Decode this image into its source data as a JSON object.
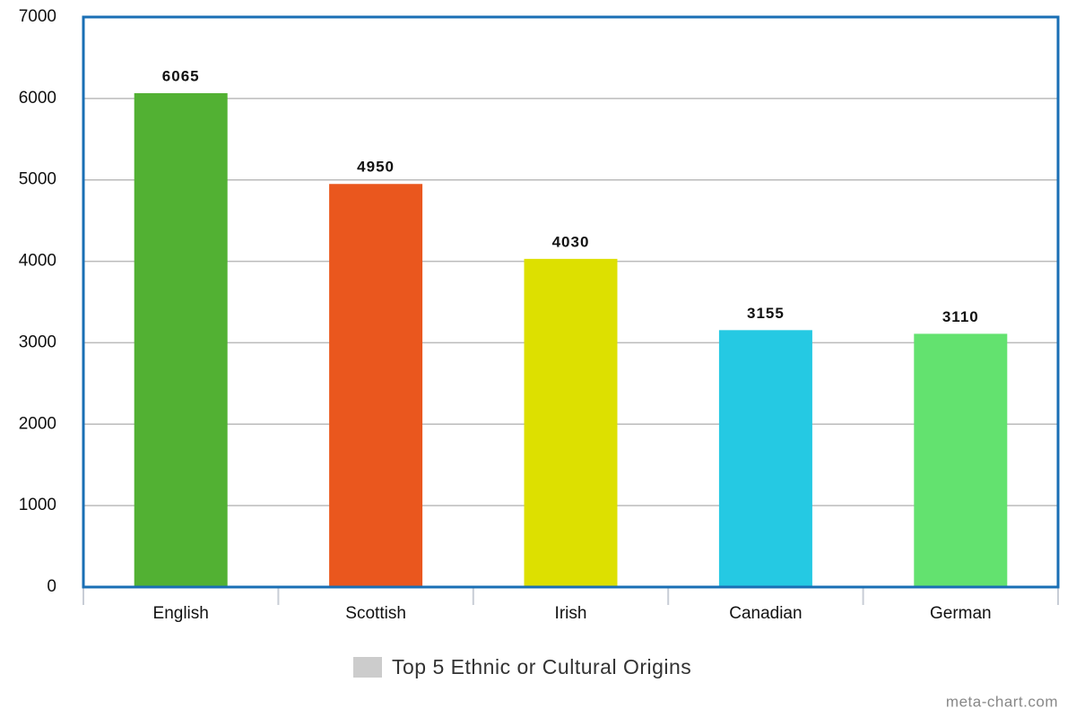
{
  "chart_data": {
    "type": "bar",
    "categories": [
      "English",
      "Scottish",
      "Irish",
      "Canadian",
      "German"
    ],
    "series": [
      {
        "name": "Top 5 Ethnic or Cultural Origins",
        "color": "#cccccc",
        "values": [
          6065,
          4950,
          4030,
          3155,
          3110
        ]
      }
    ],
    "bar_colors": [
      "#52b133",
      "#ea571e",
      "#dde000",
      "#25c9e3",
      "#63e26f"
    ],
    "ylim": [
      0,
      7000
    ],
    "yticks": [
      0,
      1000,
      2000,
      3000,
      4000,
      5000,
      6000,
      7000
    ],
    "grid": true,
    "frame_color": "#1a6fb5",
    "watermark": "meta-chart.com"
  }
}
